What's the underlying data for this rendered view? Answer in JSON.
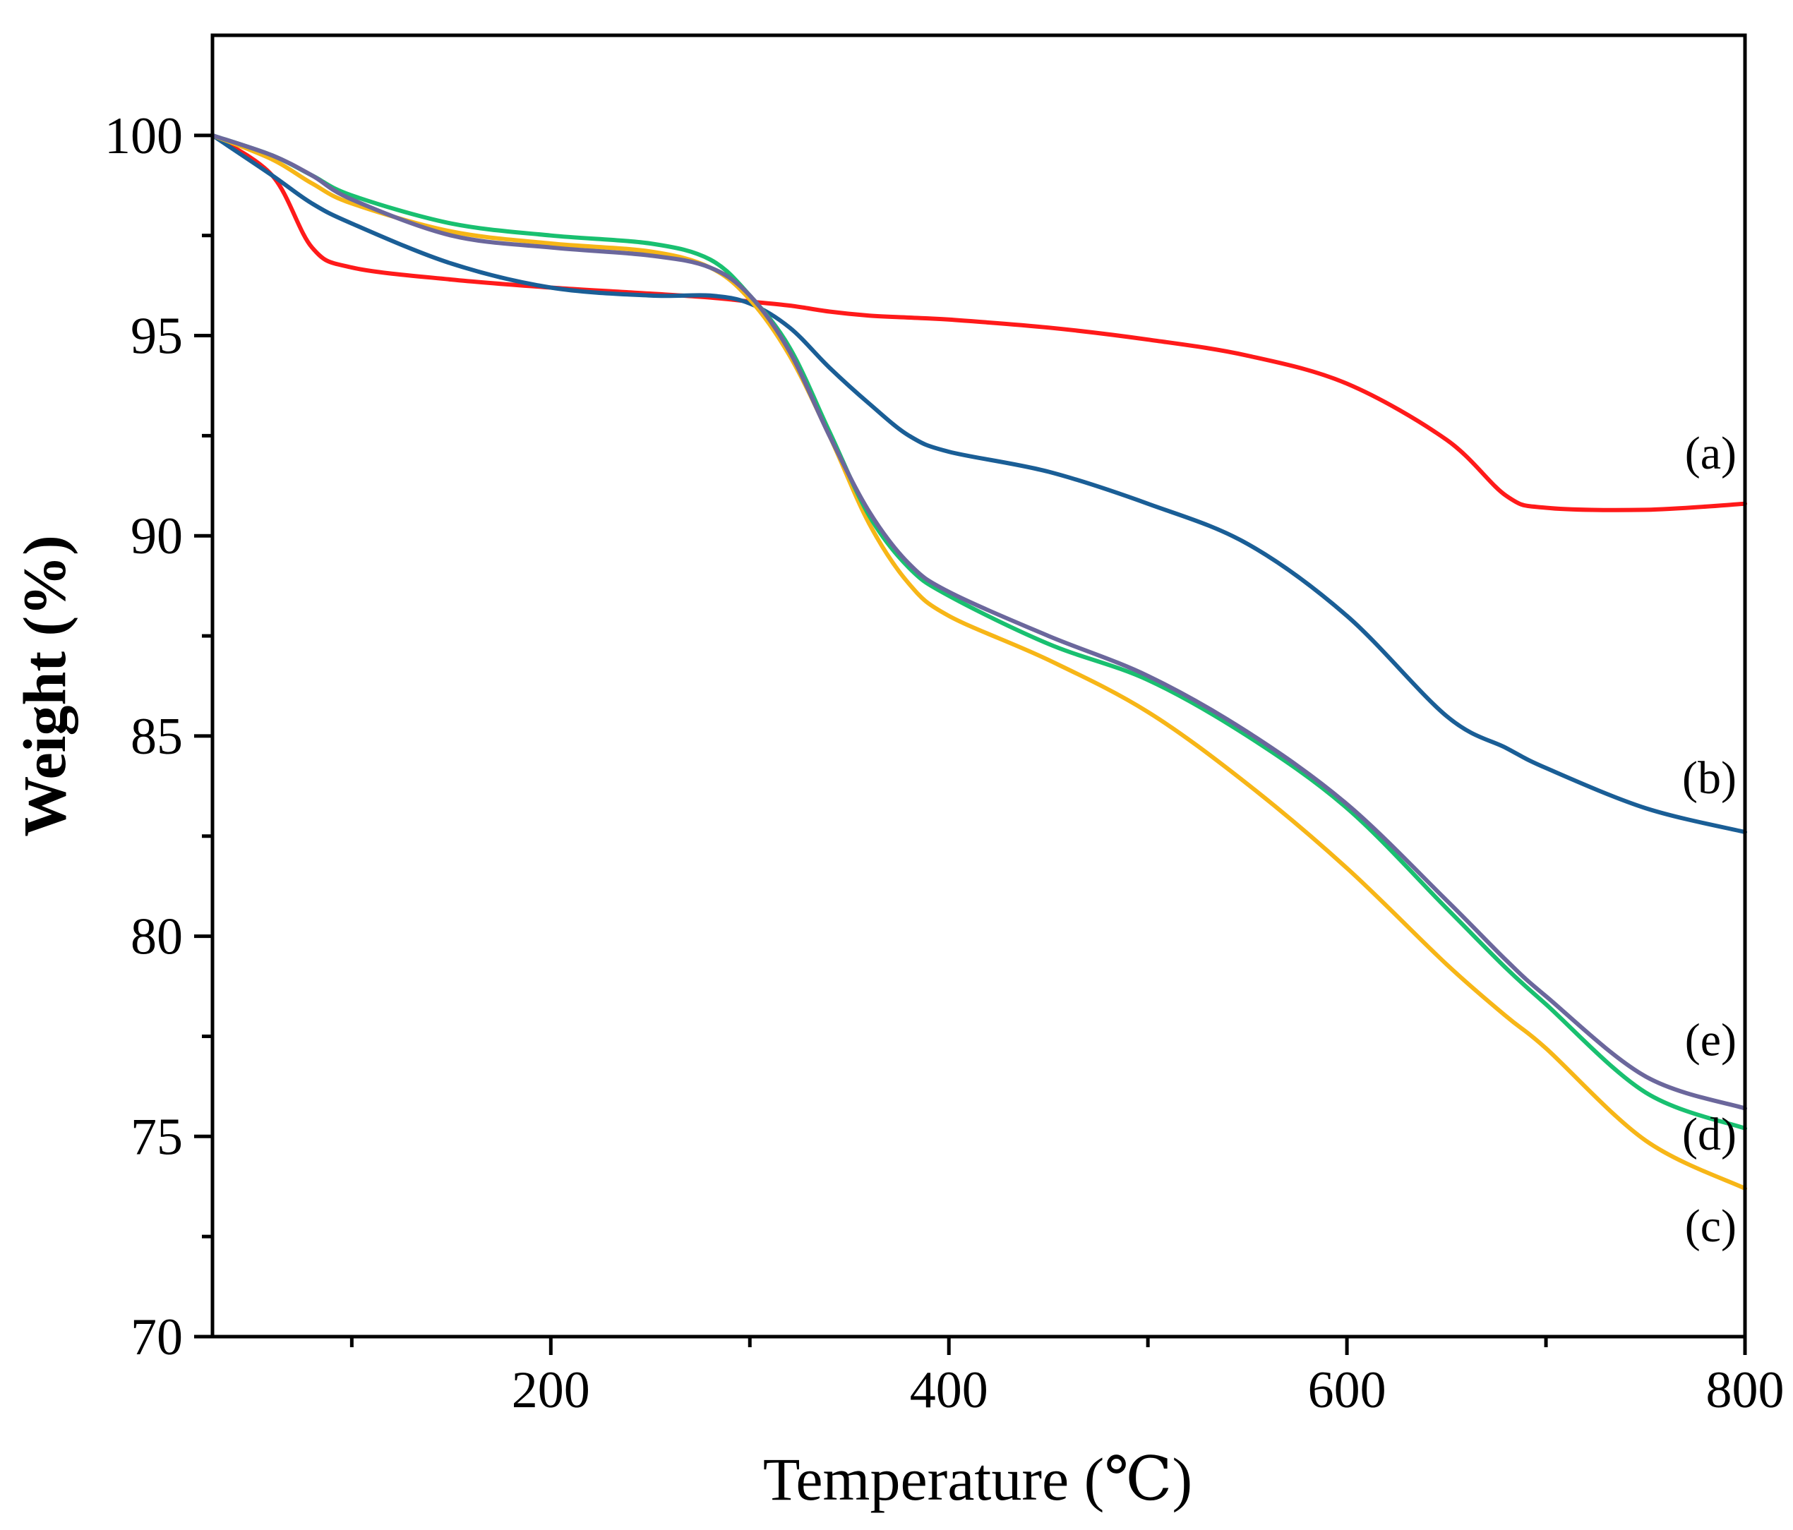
{
  "chart_data": {
    "type": "line",
    "title": "",
    "xlabel": "Temperature (℃)",
    "ylabel": "Weight (%)",
    "xlim": [
      30,
      800
    ],
    "ylim": [
      70,
      102.5
    ],
    "x_ticks": [
      200,
      400,
      600,
      800
    ],
    "x_minor_ticks": [
      100,
      300,
      500,
      700
    ],
    "y_ticks": [
      70,
      75,
      80,
      85,
      90,
      95,
      100
    ],
    "y_minor_ticks": [
      72.5,
      77.5,
      82.5,
      87.5,
      92.5,
      97.5
    ],
    "grid": false,
    "legend": "none; series labelled inline at right edge",
    "x": [
      30,
      60,
      80,
      100,
      150,
      200,
      250,
      280,
      300,
      320,
      340,
      360,
      380,
      400,
      450,
      500,
      550,
      600,
      650,
      680,
      700,
      750,
      800
    ],
    "series": [
      {
        "name": "(a)",
        "color": "#ff1a1a",
        "values": [
          100,
          99.0,
          97.2,
          96.7,
          96.4,
          96.2,
          96.05,
          95.95,
          95.85,
          95.75,
          95.6,
          95.5,
          95.45,
          95.4,
          95.2,
          94.9,
          94.5,
          93.8,
          92.4,
          91.0,
          90.7,
          90.65,
          90.8
        ]
      },
      {
        "name": "(b)",
        "color": "#1a5e96",
        "values": [
          100,
          99.0,
          98.3,
          97.8,
          96.8,
          96.2,
          96.0,
          96.0,
          95.8,
          95.2,
          94.2,
          93.3,
          92.5,
          92.1,
          91.6,
          90.8,
          89.8,
          88.0,
          85.5,
          84.7,
          84.2,
          83.2,
          82.6
        ]
      },
      {
        "name": "(c)",
        "color": "#f7b617",
        "values": [
          100,
          99.4,
          98.8,
          98.3,
          97.6,
          97.3,
          97.1,
          96.7,
          95.9,
          94.5,
          92.5,
          90.3,
          88.8,
          88.0,
          86.9,
          85.6,
          83.8,
          81.7,
          79.3,
          78.0,
          77.2,
          74.9,
          73.7
        ]
      },
      {
        "name": "(d)",
        "color": "#19c070",
        "values": [
          100,
          99.5,
          99.0,
          98.5,
          97.8,
          97.5,
          97.3,
          96.9,
          96.0,
          94.7,
          92.6,
          90.5,
          89.2,
          88.5,
          87.3,
          86.4,
          85.0,
          83.2,
          80.7,
          79.2,
          78.3,
          76.1,
          75.2
        ]
      },
      {
        "name": "(e)",
        "color": "#6b679c",
        "values": [
          100,
          99.5,
          99.0,
          98.4,
          97.5,
          97.2,
          97.0,
          96.7,
          96.0,
          94.6,
          92.5,
          90.6,
          89.3,
          88.6,
          87.5,
          86.5,
          85.1,
          83.3,
          80.9,
          79.4,
          78.5,
          76.5,
          75.7
        ]
      }
    ]
  }
}
